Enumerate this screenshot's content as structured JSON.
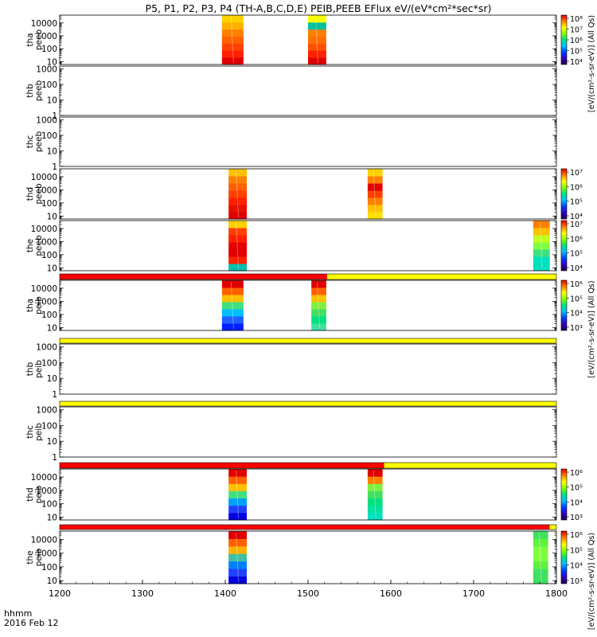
{
  "chart_data": {
    "type": "heatmap",
    "title": "P5, P1, P2, P3, P4 (TH-A,B,C,D,E) PEIB,PEEB EFlux eV/(eV*cm²*sec*sr)",
    "x_ticks": [
      1200,
      1300,
      1400,
      1500,
      1600,
      1700,
      1800
    ],
    "xlim": [
      1200,
      1800
    ],
    "time_label": "hhmm",
    "date_label": "2016 Feb 12",
    "panels": [
      {
        "id": "tha-peeb",
        "label": [
          "tha",
          "peeb"
        ],
        "y_ticks": [
          10,
          100,
          1000,
          10000
        ],
        "ylim": [
          6,
          40000
        ],
        "colorbar": true,
        "colorbar_ticks": [
          "10⁴",
          "10⁵",
          "10⁶",
          "10⁷",
          "10⁸"
        ],
        "colorbar_title": "[eV/(cm²-s-sr-eV)] (All Qs)",
        "blocks": [
          {
            "x": [
              1396,
              1422
            ],
            "colors": [
              "#e00000",
              "#ff2000",
              "#ff4000",
              "#ff6000",
              "#ff8000",
              "#ffb000",
              "#ffd000"
            ]
          },
          {
            "x": [
              1500,
              1522
            ],
            "colors": [
              "#e00000",
              "#ff2000",
              "#ff5000",
              "#ff7000",
              "#ff8000",
              "#00c0a0",
              "#ffff00"
            ]
          }
        ]
      },
      {
        "id": "thb-peeb",
        "label": [
          "thb",
          "peeb"
        ],
        "y_ticks": [
          1,
          10,
          100,
          1000
        ],
        "ylim": [
          1,
          1500
        ],
        "colorbar": false,
        "blocks": []
      },
      {
        "id": "thc-peeb",
        "label": [
          "thc",
          "peeb"
        ],
        "y_ticks": [
          1,
          10,
          100,
          1000
        ],
        "ylim": [
          1,
          1500
        ],
        "colorbar": false,
        "blocks": []
      },
      {
        "id": "thd-peeb",
        "label": [
          "thd",
          "peeb"
        ],
        "y_ticks": [
          10,
          100,
          1000,
          10000
        ],
        "ylim": [
          6,
          40000
        ],
        "colorbar": true,
        "colorbar_ticks": [
          "10⁴",
          "10⁵",
          "10⁶",
          "10⁷"
        ],
        "blocks": [
          {
            "x": [
              1404,
              1426
            ],
            "colors": [
              "#e00000",
              "#e81000",
              "#ff2000",
              "#ff4000",
              "#ff6000",
              "#ff8000",
              "#ffc000"
            ]
          },
          {
            "x": [
              1572,
              1590
            ],
            "colors": [
              "#ffe000",
              "#ffc000",
              "#ff8000",
              "#ff4000",
              "#e00000",
              "#ff8000",
              "#ffd000"
            ]
          }
        ]
      },
      {
        "id": "the-peeb",
        "label": [
          "the",
          "peeb"
        ],
        "y_ticks": [
          10,
          100,
          1000,
          10000
        ],
        "ylim": [
          6,
          40000
        ],
        "colorbar": true,
        "colorbar_ticks": [
          "10⁴",
          "10⁵",
          "10⁶",
          "10⁷"
        ],
        "blocks": [
          {
            "x": [
              1404,
              1426
            ],
            "colors": [
              "#00c0b0",
              "#ff2000",
              "#e00000",
              "#e80000",
              "#ff2000",
              "#ff4000",
              "#ffd000"
            ]
          },
          {
            "x": [
              1772,
              1792
            ],
            "colors": [
              "#00e0c0",
              "#00e0c0",
              "#40e080",
              "#80ff40",
              "#c0ff20",
              "#ffc000",
              "#ff8000"
            ]
          }
        ]
      },
      {
        "id": "tha-peib",
        "label": [
          "tha",
          "peib"
        ],
        "y_ticks": [
          10,
          100,
          1000,
          10000
        ],
        "ylim": [
          6,
          40000
        ],
        "colorbar": true,
        "colorbar_ticks": [
          "10³",
          "10⁴",
          "10⁵",
          "10⁶"
        ],
        "colorbar_title": "[eV/(cm²-s-sr-eV)] (All Qs)",
        "bar": [
          {
            "x": [
              1200,
              1523
            ],
            "color": "#ff0000"
          },
          {
            "x": [
              1523,
              1800
            ],
            "color": "#ffff00"
          }
        ],
        "blocks": [
          {
            "x": [
              1396,
              1422
            ],
            "colors": [
              "#0020ff",
              "#2060ff",
              "#00c0ff",
              "#40e080",
              "#ffc000",
              "#ff6000",
              "#e00000"
            ]
          },
          {
            "x": [
              1504,
              1522
            ],
            "colors": [
              "#40e0a0",
              "#00e080",
              "#40e060",
              "#80f040",
              "#ffc000",
              "#ff6000",
              "#e00000"
            ]
          }
        ]
      },
      {
        "id": "thb-peib",
        "label": [
          "thb",
          "peib"
        ],
        "y_ticks": [
          1,
          10,
          100,
          1000
        ],
        "ylim": [
          1,
          1500
        ],
        "colorbar": false,
        "bar": [
          {
            "x": [
              1200,
              1800
            ],
            "color": "#ffff00"
          }
        ],
        "blocks": []
      },
      {
        "id": "thc-peib",
        "label": [
          "thc",
          "peib"
        ],
        "y_ticks": [
          1,
          10,
          100,
          1000
        ],
        "ylim": [
          1,
          1500
        ],
        "colorbar": false,
        "bar": [
          {
            "x": [
              1200,
              1800
            ],
            "color": "#ffff00"
          }
        ],
        "blocks": []
      },
      {
        "id": "thd-peib",
        "label": [
          "thd",
          "peib"
        ],
        "y_ticks": [
          10,
          100,
          1000,
          10000
        ],
        "ylim": [
          6,
          40000
        ],
        "colorbar": true,
        "colorbar_ticks": [
          "10³",
          "10⁴",
          "10⁵",
          "10⁶"
        ],
        "bar": [
          {
            "x": [
              1200,
              1592
            ],
            "color": "#ff0000"
          },
          {
            "x": [
              1592,
              1800
            ],
            "color": "#ffff00"
          }
        ],
        "blocks": [
          {
            "x": [
              1404,
              1426
            ],
            "colors": [
              "#0000e0",
              "#2040ff",
              "#00a0ff",
              "#40e080",
              "#ffc000",
              "#ff6000",
              "#e00000"
            ]
          },
          {
            "x": [
              1572,
              1590
            ],
            "colors": [
              "#00e0c0",
              "#00e0a0",
              "#00e080",
              "#40e060",
              "#80f040",
              "#ff8000",
              "#e00000"
            ]
          }
        ]
      },
      {
        "id": "the-peib",
        "label": [
          "the",
          "peib"
        ],
        "y_ticks": [
          10,
          100,
          1000,
          10000
        ],
        "ylim": [
          6,
          40000
        ],
        "colorbar": true,
        "colorbar_ticks": [
          "10³",
          "10⁴",
          "10⁵",
          "10⁶"
        ],
        "colorbar_title": "[eV/(cm²-s-sr-eV)] (All Qs)",
        "bar": [
          {
            "x": [
              1200,
              1792
            ],
            "color": "#ff0000"
          },
          {
            "x": [
              1792,
              1800
            ],
            "color": "#ffff00"
          }
        ],
        "blocks": [
          {
            "x": [
              1404,
              1426
            ],
            "colors": [
              "#0000e0",
              "#2040ff",
              "#0080ff",
              "#40c0a0",
              "#ffb000",
              "#ff6000",
              "#e00000"
            ]
          },
          {
            "x": [
              1772,
              1790
            ],
            "colors": [
              "#40e060",
              "#40e060",
              "#60f040",
              "#80ff40",
              "#80ff40",
              "#60f040",
              "#40e060"
            ]
          }
        ]
      }
    ]
  }
}
